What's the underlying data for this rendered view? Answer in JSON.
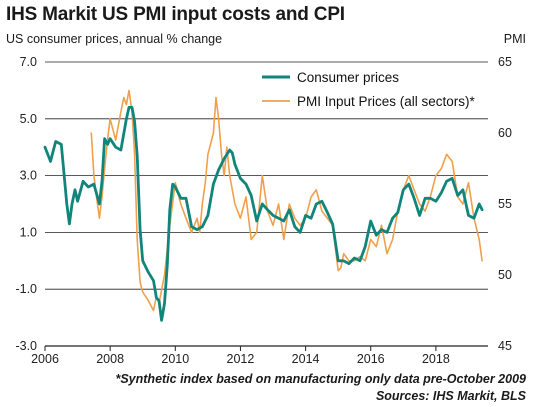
{
  "title": "IHS Markit US PMI input costs and CPI",
  "left_axis_label": "US consumer prices, annual % change",
  "right_axis_label": "PMI",
  "footnote": "*Synthetic index based on manufacturing only data pre-October 2009",
  "source": "Sources: IHS Markit, BLS",
  "colors": {
    "cpi": "#12857a",
    "pmi": "#f0a04b",
    "grid": "#222222"
  },
  "chart_data": {
    "type": "line",
    "x_ticks": [
      "2006",
      "2008",
      "2010",
      "2012",
      "2014",
      "2016",
      "2018"
    ],
    "x_range": [
      2006.0,
      2019.6
    ],
    "left_axis": {
      "ticks": [
        "7.0",
        "5.0",
        "3.0",
        "1.0",
        "-1.0",
        "-3.0"
      ],
      "ylim": [
        -3.0,
        7.0
      ]
    },
    "right_axis": {
      "ticks": [
        "65",
        "60",
        "55",
        "50",
        "45"
      ],
      "ylim": [
        45,
        65
      ]
    },
    "legend_position": "top-right",
    "series": [
      {
        "name": "Consumer prices",
        "axis": "left",
        "x": [
          2006.0,
          2006.17,
          2006.33,
          2006.5,
          2006.67,
          2006.75,
          2006.83,
          2006.92,
          2007.0,
          2007.17,
          2007.33,
          2007.5,
          2007.67,
          2007.75,
          2007.83,
          2007.92,
          2008.0,
          2008.17,
          2008.33,
          2008.5,
          2008.58,
          2008.67,
          2008.75,
          2008.83,
          2008.92,
          2009.0,
          2009.17,
          2009.33,
          2009.42,
          2009.5,
          2009.58,
          2009.67,
          2009.75,
          2009.83,
          2009.92,
          2010.0,
          2010.17,
          2010.33,
          2010.5,
          2010.67,
          2010.83,
          2011.0,
          2011.17,
          2011.33,
          2011.5,
          2011.67,
          2011.75,
          2011.83,
          2012.0,
          2012.17,
          2012.33,
          2012.5,
          2012.67,
          2012.83,
          2013.0,
          2013.17,
          2013.33,
          2013.5,
          2013.67,
          2013.83,
          2014.0,
          2014.17,
          2014.33,
          2014.5,
          2014.67,
          2014.83,
          2015.0,
          2015.17,
          2015.33,
          2015.5,
          2015.67,
          2015.83,
          2016.0,
          2016.17,
          2016.33,
          2016.5,
          2016.67,
          2016.83,
          2017.0,
          2017.17,
          2017.33,
          2017.5,
          2017.67,
          2017.83,
          2018.0,
          2018.17,
          2018.33,
          2018.5,
          2018.67,
          2018.83,
          2019.0,
          2019.17,
          2019.33,
          2019.42
        ],
        "values": [
          4.0,
          3.5,
          4.2,
          4.1,
          2.0,
          1.3,
          2.0,
          2.5,
          2.1,
          2.8,
          2.6,
          2.7,
          2.0,
          2.8,
          4.3,
          4.1,
          4.3,
          4.0,
          3.9,
          5.0,
          5.4,
          5.4,
          4.9,
          3.7,
          1.1,
          0.0,
          -0.4,
          -0.7,
          -1.3,
          -1.4,
          -2.1,
          -1.5,
          -0.2,
          1.8,
          2.7,
          2.6,
          2.2,
          2.2,
          1.2,
          1.1,
          1.2,
          1.6,
          2.7,
          3.2,
          3.6,
          3.9,
          3.8,
          3.4,
          2.9,
          2.7,
          2.3,
          1.4,
          2.0,
          1.8,
          1.6,
          1.5,
          1.4,
          1.8,
          1.2,
          1.0,
          1.6,
          1.5,
          2.0,
          2.1,
          1.7,
          1.3,
          0.0,
          0.0,
          -0.1,
          0.1,
          0.0,
          0.5,
          1.4,
          0.9,
          1.1,
          1.0,
          1.5,
          1.7,
          2.5,
          2.7,
          2.2,
          1.6,
          2.2,
          2.2,
          2.1,
          2.4,
          2.8,
          2.9,
          2.3,
          2.5,
          1.6,
          1.5,
          2.0,
          1.8
        ]
      },
      {
        "name": "PMI Input Prices (all sectors)*",
        "axis": "right",
        "x": [
          2007.42,
          2007.5,
          2007.58,
          2007.67,
          2007.75,
          2007.83,
          2007.92,
          2008.0,
          2008.17,
          2008.33,
          2008.42,
          2008.5,
          2008.58,
          2008.67,
          2008.75,
          2008.83,
          2008.92,
          2009.0,
          2009.17,
          2009.33,
          2009.42,
          2009.5,
          2009.67,
          2009.83,
          2010.0,
          2010.17,
          2010.33,
          2010.5,
          2010.67,
          2010.75,
          2010.83,
          2010.92,
          2011.0,
          2011.17,
          2011.25,
          2011.33,
          2011.42,
          2011.5,
          2011.58,
          2011.67,
          2011.83,
          2012.0,
          2012.17,
          2012.25,
          2012.33,
          2012.5,
          2012.67,
          2012.83,
          2013.0,
          2013.17,
          2013.33,
          2013.5,
          2013.67,
          2013.83,
          2014.0,
          2014.17,
          2014.33,
          2014.5,
          2014.67,
          2014.83,
          2015.0,
          2015.08,
          2015.17,
          2015.33,
          2015.5,
          2015.67,
          2015.83,
          2016.0,
          2016.17,
          2016.33,
          2016.5,
          2016.67,
          2016.83,
          2017.0,
          2017.17,
          2017.33,
          2017.5,
          2017.67,
          2017.83,
          2018.0,
          2018.17,
          2018.33,
          2018.5,
          2018.67,
          2018.83,
          2019.0,
          2019.17,
          2019.33,
          2019.42
        ],
        "values": [
          60.0,
          57.0,
          55.5,
          54.0,
          55.5,
          57.5,
          59.5,
          61.0,
          59.5,
          61.5,
          62.5,
          62.0,
          63.0,
          61.5,
          58.5,
          52.5,
          49.5,
          48.8,
          48.2,
          47.5,
          48.5,
          48.0,
          50.0,
          53.5,
          56.5,
          55.0,
          54.0,
          53.0,
          54.0,
          53.0,
          55.0,
          56.5,
          58.5,
          60.0,
          62.5,
          61.0,
          58.5,
          57.0,
          59.0,
          57.0,
          55.0,
          54.0,
          55.5,
          54.0,
          52.5,
          53.0,
          57.0,
          54.5,
          53.5,
          55.0,
          52.5,
          55.0,
          54.0,
          53.5,
          54.0,
          55.5,
          56.0,
          54.5,
          54.0,
          53.5,
          50.3,
          50.5,
          51.5,
          51.0,
          51.0,
          51.3,
          51.0,
          52.5,
          52.0,
          53.5,
          51.5,
          52.5,
          54.5,
          56.0,
          57.0,
          56.0,
          55.0,
          54.5,
          55.5,
          57.0,
          57.5,
          58.5,
          58.0,
          55.5,
          55.0,
          56.5,
          54.0,
          52.5,
          51.0
        ]
      }
    ]
  }
}
